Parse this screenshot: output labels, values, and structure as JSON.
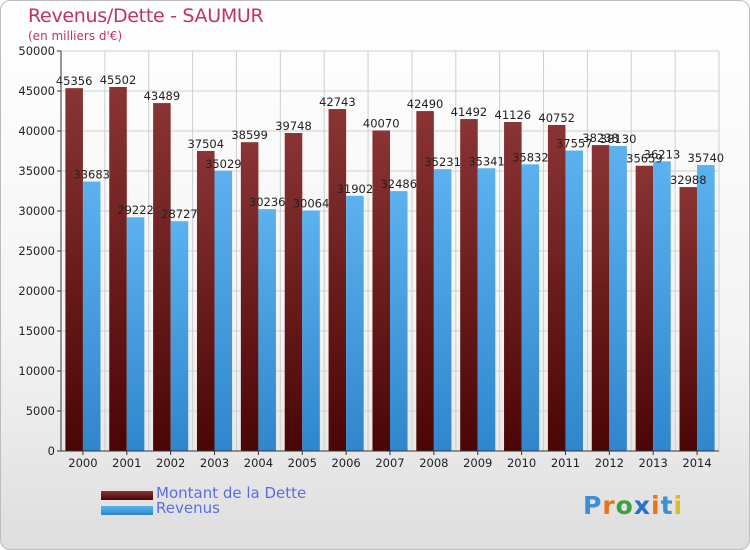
{
  "title": "Revenus/Dette - SAUMUR",
  "subtitle": "(en milliers d'€)",
  "logo": {
    "text": "Proxiti",
    "letter_colors": [
      "#3a8fd8",
      "#e8741e",
      "#3aa23a",
      "#2a6fc9",
      "#e8741e",
      "#3a8fd8",
      "#e0b92a"
    ]
  },
  "colors": {
    "dette": "#7a2a2a",
    "revenus": "#4aa3e6",
    "grid": "#cfcfcf",
    "axis": "#333333"
  },
  "chart_data": {
    "type": "bar",
    "categories": [
      "2000",
      "2001",
      "2002",
      "2003",
      "2004",
      "2005",
      "2006",
      "2007",
      "2008",
      "2009",
      "2010",
      "2011",
      "2012",
      "2013",
      "2014"
    ],
    "series": [
      {
        "name": "Montant de la Dette",
        "values": [
          45356,
          45502,
          43489,
          37504,
          38599,
          39748,
          42743,
          40070,
          42490,
          41492,
          41126,
          40752,
          38238,
          35659,
          32988
        ],
        "labels": [
          "45356",
          "45502",
          "43489",
          "37504",
          "38599",
          "39748",
          "42743",
          "40070",
          "42490",
          "41492",
          "41126",
          "40752",
          "38238",
          "35659",
          "32988"
        ]
      },
      {
        "name": "Revenus",
        "values": [
          33683,
          29222,
          28727,
          35029,
          30236,
          30064,
          31902,
          32486,
          35231,
          35341,
          35832,
          37557,
          38130,
          36213,
          35740
        ],
        "labels": [
          "33683",
          "29222",
          "28727",
          "35029",
          "30236",
          "30064",
          "31902",
          "32486",
          "35231",
          "35341",
          "35832",
          "37557",
          "38130",
          "36213",
          "35740"
        ]
      }
    ],
    "ylim": [
      0,
      50000
    ],
    "yticks": [
      "0",
      "5000",
      "10000",
      "15000",
      "20000",
      "25000",
      "30000",
      "35000",
      "40000",
      "45000",
      "50000"
    ],
    "grid": true,
    "legend_position": "bottom-left"
  }
}
